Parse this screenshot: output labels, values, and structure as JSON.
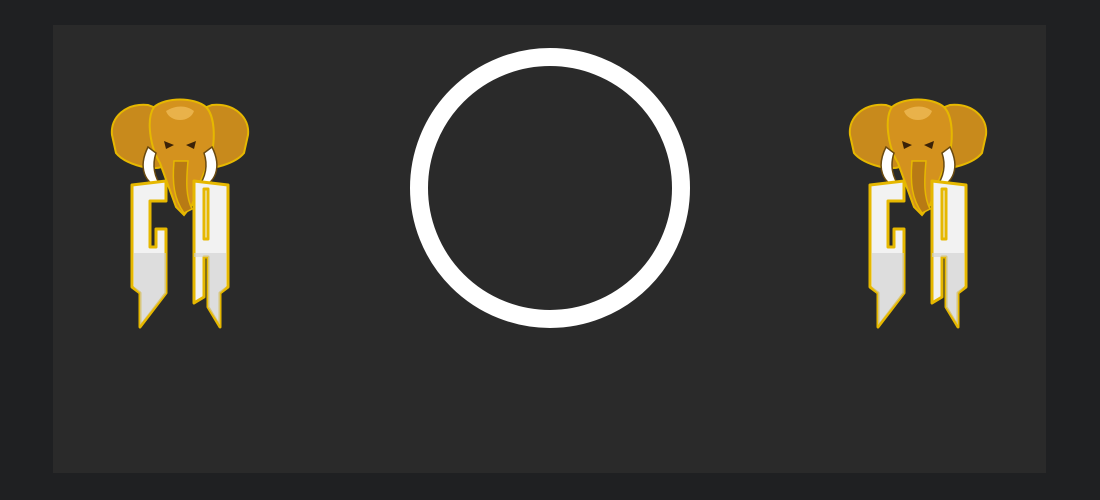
{
  "logos": {
    "left": {
      "icon": "elephant-gh-logo",
      "monogram": "GH"
    },
    "right": {
      "icon": "elephant-gh-logo",
      "monogram": "GH"
    }
  },
  "loader": {
    "icon": "loading-ring"
  },
  "colors": {
    "page_background": "#1f2022",
    "panel_background": "#2a2a2a",
    "ring": "#ffffff",
    "logo_gold": "#d4921e",
    "logo_outline": "#e6b800"
  }
}
